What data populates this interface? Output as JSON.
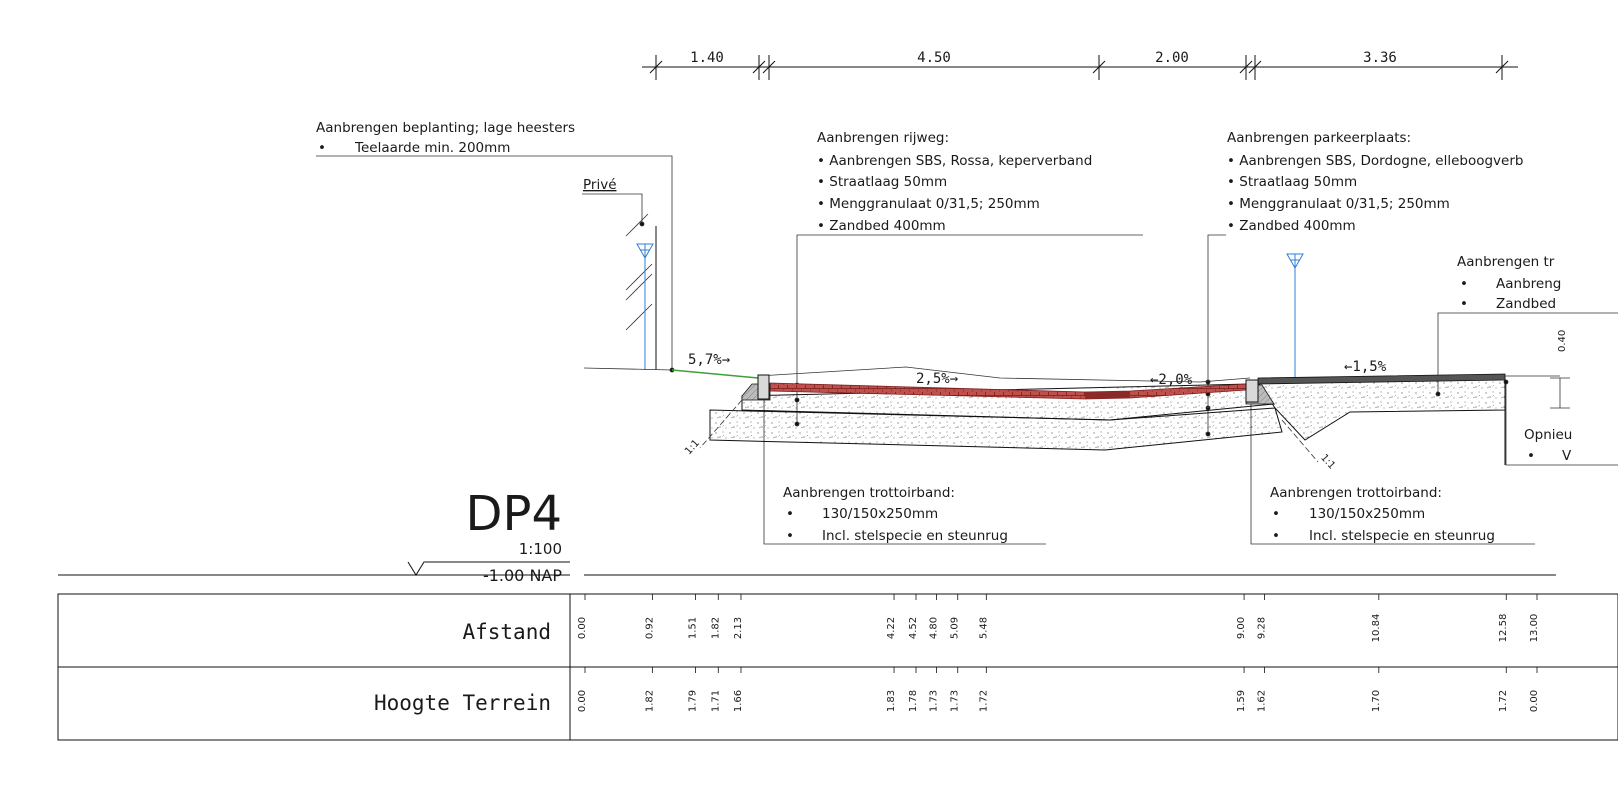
{
  "dimensions": [
    "1.40",
    "4.50",
    "2.00",
    "3.36"
  ],
  "labels": {
    "planting_title": "Aanbrengen beplanting; lage heesters",
    "planting_item": "Teelaarde min. 200mm",
    "prive": "Privé",
    "road_title": "Aanbrengen rijweg:",
    "road_items": [
      "• Aanbrengen SBS, Rossa, keperverband",
      "• Straatlaag 50mm",
      "• Menggranulaat 0/31,5; 250mm",
      "• Zandbed 400mm"
    ],
    "parking_title": "Aanbrengen parkeerplaats:",
    "parking_items": [
      "• Aanbrengen SBS, Dordogne, elleboogverb",
      "• Straatlaag 50mm",
      "• Menggranulaat 0/31,5; 250mm",
      "• Zandbed 400mm"
    ],
    "sidewalk_title": "Aanbrengen tr",
    "sidewalk_items": [
      "Aanbreng",
      "Zandbed"
    ],
    "curb1_title": "Aanbrengen trottoirband:",
    "curb1_items": [
      "130/150x250mm",
      "Incl. stelspecie en steunrug"
    ],
    "curb2_title": "Aanbrengen trottoirband:",
    "curb2_items": [
      "130/150x250mm",
      "Incl. stelspecie en steunrug"
    ],
    "opnieuw": "Opnieu",
    "opnieuw_item": "V",
    "dim_040": "0.40"
  },
  "slopes": [
    "5,7%→",
    "2,5%→",
    "←2,0%",
    "←1,5%"
  ],
  "side_slopes": [
    "1:1",
    "1:1"
  ],
  "section": {
    "name": "DP4",
    "scale": "1:100",
    "datum": "-1.00  NAP"
  },
  "table": {
    "rows": [
      {
        "label": "Afstand",
        "values": [
          "0.00",
          "0.92",
          "1.51",
          "1.82",
          "2.13",
          "4.22",
          "4.52",
          "4.80",
          "5.09",
          "5.48",
          "9.00",
          "9.28",
          "10.84",
          "12.58",
          "13.00"
        ]
      },
      {
        "label": "Hoogte Terrein",
        "values": [
          "0.00",
          "1.82",
          "1.79",
          "1.71",
          "1.66",
          "1.83",
          "1.78",
          "1.73",
          "1.73",
          "1.72",
          "1.59",
          "1.62",
          "1.70",
          "1.72",
          "0.00"
        ]
      }
    ]
  },
  "colors": {
    "paving": "#c0504d",
    "paving_edge": "#7a1f1c",
    "green_edge": "#3fa03a",
    "water_mark": "#2f7fd8",
    "line": "#111111"
  }
}
